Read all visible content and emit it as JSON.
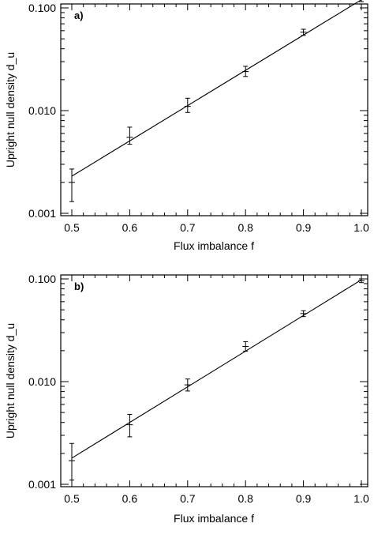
{
  "chart_data": [
    {
      "type": "scatter",
      "panel_label": "a)",
      "xlabel": "Flux imbalance f",
      "ylabel": "Upright null density d_u",
      "xlim": [
        0.5,
        1.0
      ],
      "ylim": [
        0.001,
        0.1
      ],
      "yscale": "log",
      "grid": false,
      "xticks": [
        "0.5",
        "0.6",
        "0.7",
        "0.8",
        "0.9",
        "1.0"
      ],
      "yticks": [
        "0.001",
        "0.010",
        "0.100"
      ],
      "points": [
        {
          "x": 0.5,
          "y": 0.002,
          "err_low": 0.0013,
          "err_high": 0.0027
        },
        {
          "x": 0.6,
          "y": 0.0055,
          "err_low": 0.0047,
          "err_high": 0.0069
        },
        {
          "x": 0.7,
          "y": 0.011,
          "err_low": 0.0096,
          "err_high": 0.0132
        },
        {
          "x": 0.8,
          "y": 0.024,
          "err_low": 0.0215,
          "err_high": 0.027
        },
        {
          "x": 0.9,
          "y": 0.058,
          "err_low": 0.054,
          "err_high": 0.062
        },
        {
          "x": 1.0,
          "y": 0.122,
          "err_low": 0.115,
          "err_high": 0.13
        }
      ],
      "fit_line": [
        {
          "x": 0.5,
          "y": 0.0023
        },
        {
          "x": 1.0,
          "y": 0.12
        }
      ]
    },
    {
      "type": "scatter",
      "panel_label": "b)",
      "xlabel": "Flux imbalance f",
      "ylabel": "Upright null density d_u",
      "xlim": [
        0.5,
        1.0
      ],
      "ylim": [
        0.001,
        0.1
      ],
      "yscale": "log",
      "grid": false,
      "xticks": [
        "0.5",
        "0.6",
        "0.7",
        "0.8",
        "0.9",
        "1.0"
      ],
      "yticks": [
        "0.001",
        "0.010",
        "0.100"
      ],
      "points": [
        {
          "x": 0.5,
          "y": 0.0017,
          "err_low": 0.0011,
          "err_high": 0.0025
        },
        {
          "x": 0.6,
          "y": 0.0038,
          "err_low": 0.0029,
          "err_high": 0.0048
        },
        {
          "x": 0.7,
          "y": 0.0093,
          "err_low": 0.0081,
          "err_high": 0.0106
        },
        {
          "x": 0.8,
          "y": 0.022,
          "err_low": 0.0198,
          "err_high": 0.0245
        },
        {
          "x": 0.9,
          "y": 0.046,
          "err_low": 0.043,
          "err_high": 0.049
        },
        {
          "x": 1.0,
          "y": 0.096,
          "err_low": 0.092,
          "err_high": 0.1
        }
      ],
      "fit_line": [
        {
          "x": 0.5,
          "y": 0.0018
        },
        {
          "x": 1.0,
          "y": 0.098
        }
      ]
    }
  ]
}
